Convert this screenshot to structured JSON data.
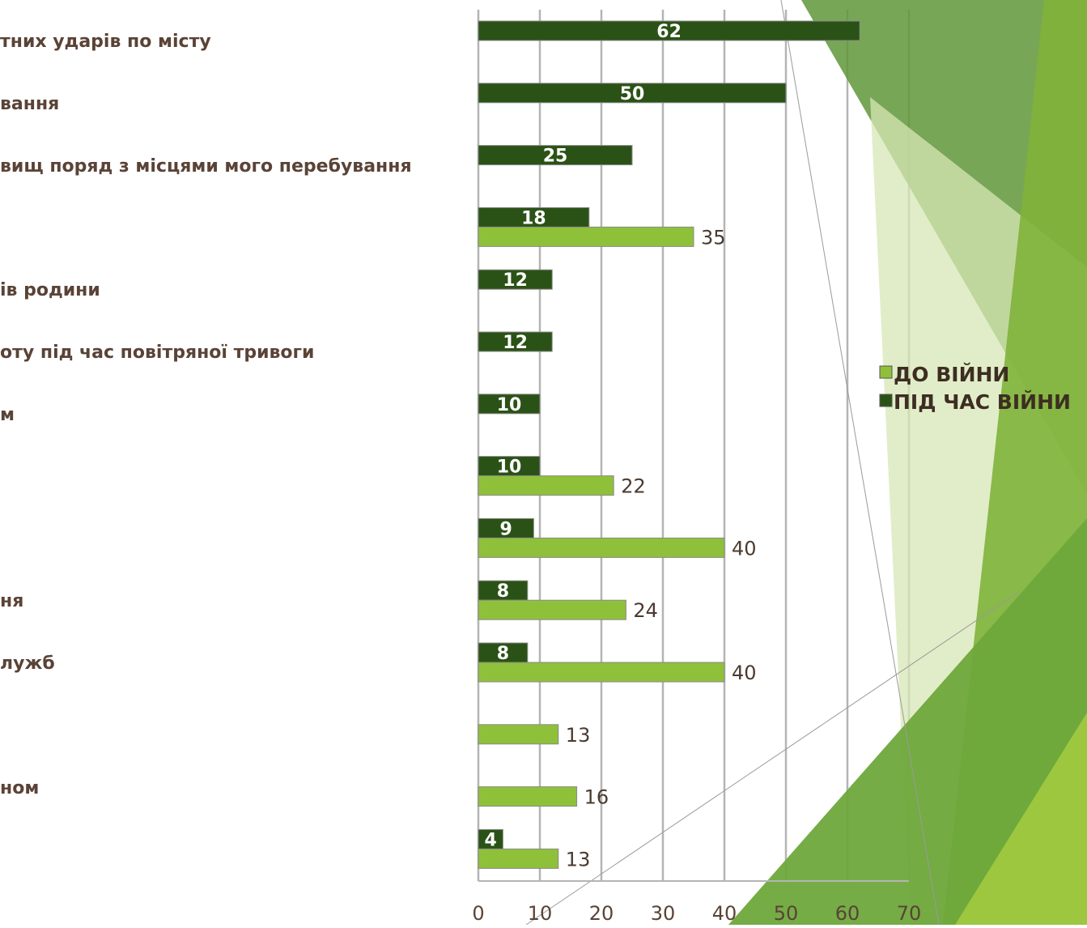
{
  "chart_data": {
    "type": "bar",
    "orientation": "horizontal",
    "categories": [
      "тних ударів по місту",
      "вання",
      "вищ поряд з місцями мого перебування",
      "",
      "ів родини",
      "оту під час повітряної тривоги",
      "м",
      "",
      "",
      "ня",
      "лужб",
      "",
      "ном",
      ""
    ],
    "series": [
      {
        "name": "ДО ВІЙНИ",
        "color": "#8fc03a",
        "values": [
          null,
          null,
          null,
          35,
          null,
          null,
          null,
          22,
          40,
          24,
          40,
          13,
          16,
          13
        ]
      },
      {
        "name": "ПІД ЧАС ВІЙНИ",
        "color": "#2b5216",
        "values": [
          62,
          50,
          25,
          18,
          12,
          12,
          10,
          10,
          9,
          8,
          8,
          null,
          null,
          4
        ]
      }
    ],
    "xlim": [
      0,
      70
    ],
    "xticks": [
      "0",
      "10",
      "20",
      "30",
      "40",
      "50",
      "60",
      "70"
    ],
    "grid": true,
    "legend": "right"
  },
  "colors": {
    "before_war": "#8fc03a",
    "during_war": "#2b5216",
    "label_text": "#5a4336",
    "gridline": "#b4b4b4",
    "theme_green_dark": "#4e8b2a",
    "theme_green_mid": "#76b043",
    "theme_green_light": "#d7e7b6"
  }
}
